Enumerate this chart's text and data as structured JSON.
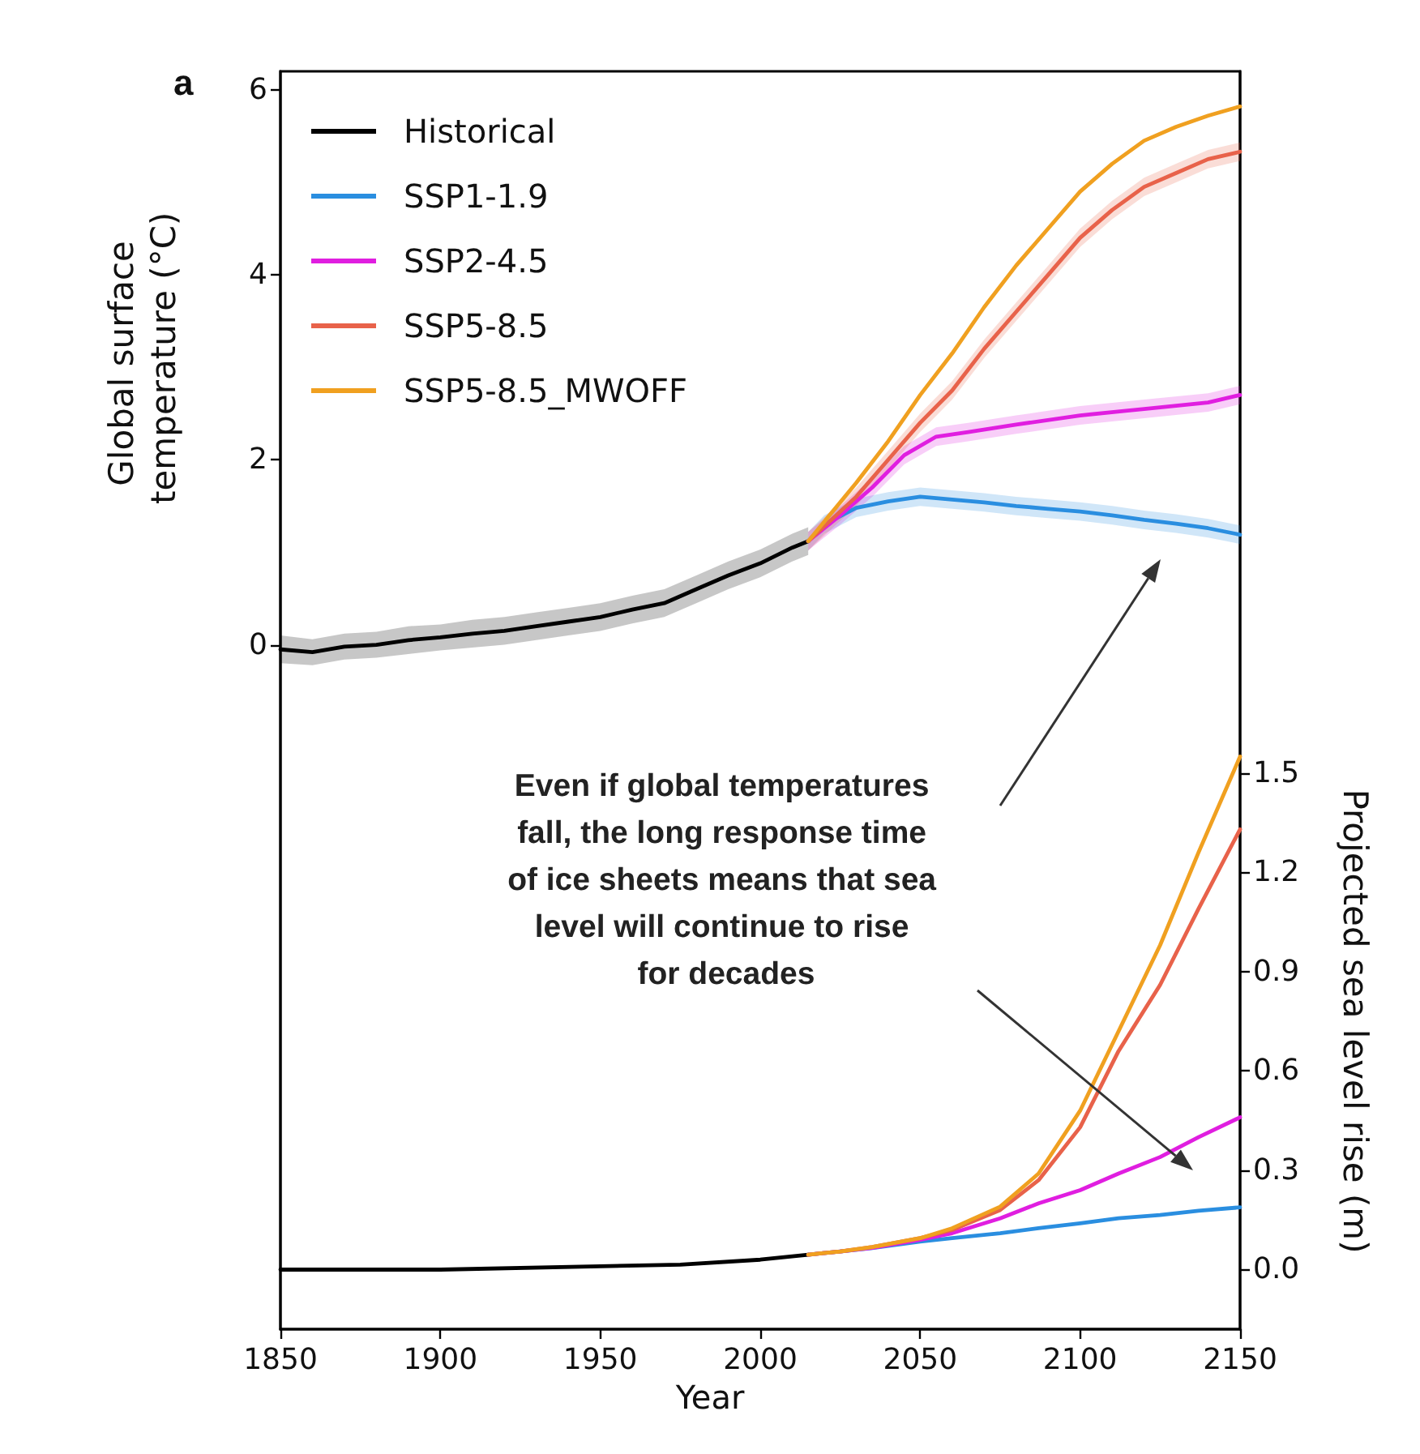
{
  "chart_data": {
    "type": "line",
    "xlabel": "Year",
    "ylabel": "Global surface temperature (°C)",
    "y2label": "Projected sea level rise (m)",
    "xlim": [
      1850,
      2150
    ],
    "xticks": [
      1850,
      1900,
      1950,
      2000,
      2050,
      2100,
      2150
    ],
    "ylim": [
      -7.4,
      6.2
    ],
    "yticks": [
      0,
      2,
      4,
      6
    ],
    "y2lim": [
      -0.18,
      3.62
    ],
    "y2ticks": [
      {
        "value": 0,
        "label": "0.0"
      },
      {
        "value": 0.3,
        "label": "0.3"
      },
      {
        "value": 0.6,
        "label": "0.6"
      },
      {
        "value": 0.9,
        "label": "0.9"
      },
      {
        "value": 1.2,
        "label": "1.2"
      },
      {
        "value": 1.5,
        "label": "1.5"
      }
    ],
    "legend": "top left",
    "grid": false,
    "marker": "none",
    "line_style": "solid",
    "annotations": [
      "a",
      "Even if global temperatures fall, the long response time of ice sheets means that sea level will continue to rise for decades"
    ],
    "series": [
      {
        "name": "Historical",
        "color": "#000000",
        "x": [
          1850,
          1860,
          1870,
          1880,
          1890,
          1900,
          1910,
          1920,
          1930,
          1940,
          1950,
          1960,
          1970,
          1980,
          1990,
          2000,
          2010,
          2015
        ],
        "values": [
          -0.05,
          -0.08,
          -0.02,
          0.0,
          0.05,
          0.08,
          0.12,
          0.15,
          0.2,
          0.25,
          0.3,
          0.38,
          0.45,
          0.6,
          0.75,
          0.88,
          1.05,
          1.12
        ],
        "lower": [
          -0.2,
          -0.22,
          -0.16,
          -0.14,
          -0.1,
          -0.06,
          -0.03,
          0.0,
          0.05,
          0.1,
          0.15,
          0.23,
          0.3,
          0.45,
          0.6,
          0.73,
          0.9,
          0.97
        ],
        "upper": [
          0.1,
          0.06,
          0.12,
          0.14,
          0.2,
          0.22,
          0.27,
          0.3,
          0.35,
          0.4,
          0.45,
          0.53,
          0.6,
          0.75,
          0.9,
          1.03,
          1.2,
          1.27
        ]
      },
      {
        "name": "SSP1-1.9",
        "color": "#2a8ee0",
        "x": [
          2015,
          2020,
          2030,
          2040,
          2050,
          2060,
          2070,
          2080,
          2090,
          2100,
          2110,
          2120,
          2130,
          2140,
          2150
        ],
        "values": [
          1.12,
          1.3,
          1.48,
          1.55,
          1.6,
          1.57,
          1.54,
          1.5,
          1.47,
          1.44,
          1.4,
          1.35,
          1.31,
          1.26,
          1.19
        ],
        "lower": [
          1.02,
          1.2,
          1.38,
          1.45,
          1.5,
          1.47,
          1.44,
          1.4,
          1.37,
          1.34,
          1.3,
          1.25,
          1.21,
          1.16,
          1.09
        ],
        "upper": [
          1.22,
          1.4,
          1.58,
          1.65,
          1.7,
          1.67,
          1.64,
          1.6,
          1.57,
          1.54,
          1.5,
          1.45,
          1.41,
          1.36,
          1.29
        ]
      },
      {
        "name": "SSP2-4.5",
        "color": "#e01ee0",
        "x": [
          2015,
          2025,
          2035,
          2045,
          2055,
          2065,
          2080,
          2100,
          2120,
          2140,
          2150
        ],
        "values": [
          1.12,
          1.4,
          1.7,
          2.05,
          2.25,
          2.3,
          2.38,
          2.48,
          2.55,
          2.62,
          2.7
        ],
        "lower": [
          1.02,
          1.3,
          1.6,
          1.95,
          2.15,
          2.2,
          2.28,
          2.38,
          2.45,
          2.52,
          2.6
        ],
        "upper": [
          1.22,
          1.5,
          1.8,
          2.15,
          2.35,
          2.4,
          2.48,
          2.58,
          2.65,
          2.72,
          2.8
        ]
      },
      {
        "name": "SSP5-8.5",
        "color": "#e8624a",
        "x": [
          2015,
          2030,
          2040,
          2050,
          2060,
          2070,
          2080,
          2090,
          2100,
          2110,
          2120,
          2130,
          2140,
          2150
        ],
        "values": [
          1.12,
          1.6,
          2.0,
          2.4,
          2.75,
          3.2,
          3.6,
          4.0,
          4.4,
          4.7,
          4.95,
          5.1,
          5.25,
          5.33
        ],
        "lower": [
          1.02,
          1.5,
          1.9,
          2.3,
          2.65,
          3.1,
          3.5,
          3.9,
          4.3,
          4.6,
          4.85,
          5.0,
          5.15,
          5.23
        ],
        "upper": [
          1.22,
          1.7,
          2.1,
          2.5,
          2.85,
          3.3,
          3.7,
          4.1,
          4.5,
          4.8,
          5.05,
          5.2,
          5.35,
          5.43
        ]
      },
      {
        "name": "SSP5-8.5_MWOFF",
        "color": "#f0a020",
        "x": [
          2015,
          2030,
          2040,
          2050,
          2060,
          2070,
          2080,
          2090,
          2100,
          2110,
          2120,
          2130,
          2140,
          2150
        ],
        "values": [
          1.12,
          1.75,
          2.2,
          2.7,
          3.15,
          3.65,
          4.1,
          4.5,
          4.9,
          5.2,
          5.45,
          5.6,
          5.72,
          5.82
        ]
      },
      {
        "color": "#000000",
        "axis": "y2",
        "x": [
          1850,
          1900,
          1950,
          1975,
          2000,
          2015
        ],
        "values": [
          0.0,
          0.0,
          0.01,
          0.015,
          0.03,
          0.045
        ]
      },
      {
        "color": "#2a8ee0",
        "axis": "y2",
        "x": [
          2015,
          2025,
          2035,
          2050,
          2060,
          2075,
          2087,
          2100,
          2112,
          2125,
          2137,
          2150
        ],
        "values": [
          0.045,
          0.055,
          0.065,
          0.085,
          0.095,
          0.11,
          0.125,
          0.14,
          0.155,
          0.165,
          0.178,
          0.188
        ]
      },
      {
        "color": "#e01ee0",
        "axis": "y2",
        "x": [
          2015,
          2025,
          2035,
          2050,
          2060,
          2075,
          2087,
          2100,
          2112,
          2125,
          2137,
          2150
        ],
        "values": [
          0.045,
          0.055,
          0.066,
          0.09,
          0.11,
          0.155,
          0.2,
          0.24,
          0.29,
          0.34,
          0.4,
          0.46
        ]
      },
      {
        "color": "#e8624a",
        "axis": "y2",
        "x": [
          2015,
          2025,
          2035,
          2050,
          2060,
          2075,
          2087,
          2100,
          2112,
          2125,
          2137,
          2150
        ],
        "values": [
          0.045,
          0.055,
          0.068,
          0.095,
          0.12,
          0.18,
          0.27,
          0.43,
          0.66,
          0.86,
          1.09,
          1.33
        ]
      },
      {
        "color": "#f0a020",
        "axis": "y2",
        "x": [
          2015,
          2025,
          2035,
          2050,
          2060,
          2075,
          2087,
          2100,
          2112,
          2125,
          2137,
          2150
        ],
        "values": [
          0.045,
          0.055,
          0.068,
          0.095,
          0.125,
          0.19,
          0.29,
          0.48,
          0.72,
          0.98,
          1.26,
          1.55
        ]
      }
    ]
  }
}
